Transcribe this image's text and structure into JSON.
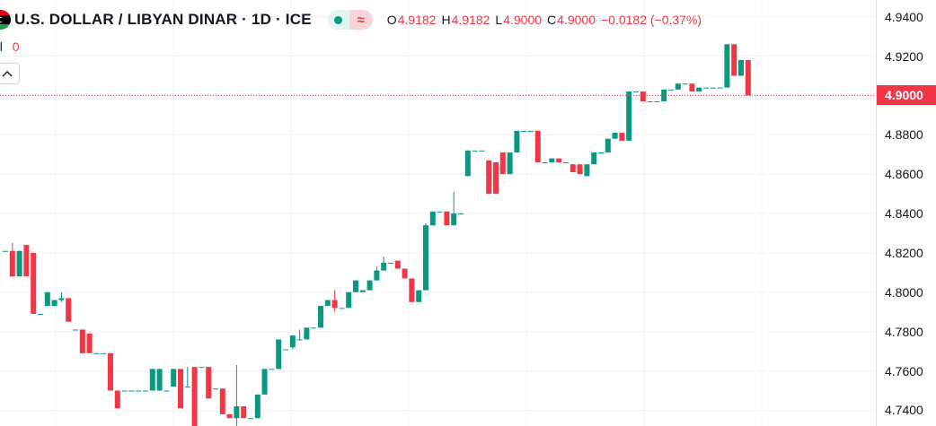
{
  "legend": {
    "title": "U.S. DOLLAR / LIBYAN DINAR · 1D · ICE",
    "flag_icon": "libya-flag-icon",
    "status_icon": "market-open-dot-icon",
    "compare_icon": "approx-wave-icon",
    "ohlc": {
      "o_label": "O",
      "o_value": "4.9182",
      "h_label": "H",
      "h_value": "4.9182",
      "l_label": "L",
      "l_value": "4.9000",
      "c_label": "C",
      "c_value": "4.9000",
      "change": "−0.0182 (−0.37%)"
    },
    "vol_label": "ol",
    "vol_value": "0"
  },
  "colors": {
    "up": "#089981",
    "down": "#f23645",
    "grid": "#f0f3fa",
    "axis": "#e0e3eb"
  },
  "price_scale": {
    "labels": [
      "4.9400",
      "4.9200",
      "4.9000",
      "4.8800",
      "4.8600",
      "4.8400",
      "4.8200",
      "4.8000",
      "4.7800",
      "4.7600",
      "4.7400"
    ],
    "last_price_label": "4.9000"
  },
  "chart_data": {
    "type": "candlestick",
    "title": "U.S. DOLLAR / LIBYAN DINAR · 1D · ICE",
    "ylim": [
      4.732,
      4.9485
    ],
    "y_ticks": [
      4.94,
      4.92,
      4.9,
      4.88,
      4.86,
      4.84,
      4.82,
      4.8,
      4.78,
      4.76,
      4.74
    ],
    "last_price": 4.9,
    "grid": true,
    "candles": [
      [
        4.821,
        4.821,
        4.821,
        4.821
      ],
      [
        4.821,
        4.825,
        4.808,
        4.808
      ],
      [
        4.808,
        4.821,
        4.808,
        4.821
      ],
      [
        4.824,
        4.824,
        4.808,
        4.808
      ],
      [
        4.82,
        4.82,
        4.789,
        4.789
      ],
      [
        4.789,
        4.789,
        4.789,
        4.789
      ],
      [
        4.793,
        4.8,
        4.793,
        4.8
      ],
      [
        4.793,
        4.796,
        4.793,
        4.796
      ],
      [
        4.796,
        4.8,
        4.795,
        4.797
      ],
      [
        4.797,
        4.797,
        4.785,
        4.785
      ],
      [
        4.781,
        4.781,
        4.781,
        4.781
      ],
      [
        4.781,
        4.781,
        4.769,
        4.769
      ],
      [
        4.779,
        4.779,
        4.769,
        4.769
      ],
      [
        4.769,
        4.769,
        4.769,
        4.769
      ],
      [
        4.769,
        4.769,
        4.769,
        4.769
      ],
      [
        4.769,
        4.769,
        4.75,
        4.75
      ],
      [
        4.75,
        4.75,
        4.741,
        4.741
      ],
      [
        4.75,
        4.75,
        4.75,
        4.75
      ],
      [
        4.75,
        4.75,
        4.75,
        4.75
      ],
      [
        4.75,
        4.75,
        4.75,
        4.75
      ],
      [
        4.75,
        4.75,
        4.75,
        4.75
      ],
      [
        4.75,
        4.761,
        4.75,
        4.761
      ],
      [
        4.75,
        4.761,
        4.75,
        4.761
      ],
      [
        4.75,
        4.75,
        4.75,
        4.75
      ],
      [
        4.752,
        4.761,
        4.752,
        4.761
      ],
      [
        4.761,
        4.761,
        4.741,
        4.741
      ],
      [
        4.752,
        4.762,
        4.752,
        4.752
      ],
      [
        4.762,
        4.762,
        4.732,
        4.732
      ],
      [
        4.762,
        4.762,
        4.762,
        4.762
      ],
      [
        4.762,
        4.762,
        4.746,
        4.746
      ],
      [
        4.751,
        4.751,
        4.751,
        4.751
      ],
      [
        4.751,
        4.751,
        4.738,
        4.738
      ],
      [
        4.738,
        4.738,
        4.736,
        4.736
      ],
      [
        4.736,
        4.763,
        4.732,
        4.742
      ],
      [
        4.742,
        4.742,
        4.736,
        4.736
      ],
      [
        4.736,
        4.736,
        4.736,
        4.736
      ],
      [
        4.736,
        4.748,
        4.736,
        4.748
      ],
      [
        4.748,
        4.761,
        4.748,
        4.761
      ],
      [
        4.761,
        4.761,
        4.761,
        4.761
      ],
      [
        4.761,
        4.776,
        4.761,
        4.776
      ],
      [
        4.771,
        4.771,
        4.771,
        4.771
      ],
      [
        4.772,
        4.778,
        4.771,
        4.778
      ],
      [
        4.776,
        4.781,
        4.776,
        4.776
      ],
      [
        4.776,
        4.782,
        4.776,
        4.782
      ],
      [
        4.782,
        4.782,
        4.782,
        4.782
      ],
      [
        4.782,
        4.793,
        4.782,
        4.793
      ],
      [
        4.793,
        4.796,
        4.793,
        4.796
      ],
      [
        4.796,
        4.801,
        4.79,
        4.792
      ],
      [
        4.792,
        4.792,
        4.792,
        4.792
      ],
      [
        4.792,
        4.8,
        4.792,
        4.8
      ],
      [
        4.8,
        4.806,
        4.8,
        4.806
      ],
      [
        4.8,
        4.801,
        4.8,
        4.801
      ],
      [
        4.801,
        4.806,
        4.801,
        4.806
      ],
      [
        4.806,
        4.813,
        4.806,
        4.811
      ],
      [
        4.811,
        4.818,
        4.811,
        4.815
      ],
      [
        4.815,
        4.815,
        4.815,
        4.815
      ],
      [
        4.816,
        4.816,
        4.812,
        4.812
      ],
      [
        4.812,
        4.812,
        4.807,
        4.807
      ],
      [
        4.807,
        4.807,
        4.795,
        4.795
      ],
      [
        4.795,
        4.801,
        4.795,
        4.801
      ],
      [
        4.801,
        4.835,
        4.801,
        4.834
      ],
      [
        4.834,
        4.841,
        4.834,
        4.841
      ],
      [
        4.841,
        4.841,
        4.841,
        4.841
      ],
      [
        4.841,
        4.841,
        4.834,
        4.834
      ],
      [
        4.834,
        4.851,
        4.834,
        4.84
      ],
      [
        4.84,
        4.84,
        4.84,
        4.84
      ],
      [
        4.859,
        4.872,
        4.859,
        4.872
      ],
      [
        4.872,
        4.872,
        4.872,
        4.872
      ],
      [
        4.872,
        4.872,
        4.872,
        4.872
      ],
      [
        4.867,
        4.867,
        4.85,
        4.85
      ],
      [
        4.866,
        4.866,
        4.85,
        4.85
      ],
      [
        4.871,
        4.871,
        4.86,
        4.86
      ],
      [
        4.86,
        4.871,
        4.86,
        4.871
      ],
      [
        4.871,
        4.882,
        4.871,
        4.882
      ],
      [
        4.882,
        4.882,
        4.882,
        4.882
      ],
      [
        4.882,
        4.882,
        4.882,
        4.882
      ],
      [
        4.882,
        4.882,
        4.866,
        4.866
      ],
      [
        4.866,
        4.866,
        4.866,
        4.866
      ],
      [
        4.866,
        4.868,
        4.866,
        4.868
      ],
      [
        4.868,
        4.868,
        4.866,
        4.866
      ],
      [
        4.866,
        4.866,
        4.866,
        4.866
      ],
      [
        4.865,
        4.865,
        4.861,
        4.861
      ],
      [
        4.865,
        4.865,
        4.86,
        4.86
      ],
      [
        4.859,
        4.865,
        4.859,
        4.865
      ],
      [
        4.865,
        4.871,
        4.865,
        4.871
      ],
      [
        4.871,
        4.871,
        4.871,
        4.871
      ],
      [
        4.871,
        4.878,
        4.871,
        4.878
      ],
      [
        4.878,
        4.881,
        4.878,
        4.881
      ],
      [
        4.881,
        4.881,
        4.877,
        4.877
      ],
      [
        4.877,
        4.902,
        4.877,
        4.902
      ],
      [
        4.902,
        4.902,
        4.902,
        4.902
      ],
      [
        4.902,
        4.902,
        4.897,
        4.897
      ],
      [
        4.897,
        4.897,
        4.897,
        4.897
      ],
      [
        4.897,
        4.897,
        4.897,
        4.897
      ],
      [
        4.897,
        4.903,
        4.897,
        4.903
      ],
      [
        4.903,
        4.903,
        4.903,
        4.903
      ],
      [
        4.903,
        4.906,
        4.903,
        4.906
      ],
      [
        4.906,
        4.906,
        4.906,
        4.906
      ],
      [
        4.906,
        4.906,
        4.902,
        4.902
      ],
      [
        4.902,
        4.904,
        4.902,
        4.904
      ],
      [
        4.904,
        4.904,
        4.904,
        4.904
      ],
      [
        4.904,
        4.904,
        4.904,
        4.904
      ],
      [
        4.904,
        4.904,
        4.904,
        4.904
      ],
      [
        4.904,
        4.926,
        4.904,
        4.926
      ],
      [
        4.926,
        4.926,
        4.91,
        4.91
      ],
      [
        4.91,
        4.918,
        4.91,
        4.918
      ],
      [
        4.918,
        4.918,
        4.9,
        4.9
      ]
    ]
  }
}
